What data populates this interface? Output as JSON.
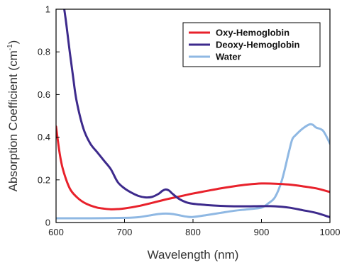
{
  "chart_data": {
    "type": "line",
    "xlabel": "Wavelength (nm)",
    "ylabel_main": "Absorption Coefficient (cm",
    "ylabel_sup": "-1",
    "ylabel_close": ")",
    "xlim": [
      600,
      1000
    ],
    "ylim": [
      0,
      1
    ],
    "x_ticks": [
      600,
      700,
      800,
      900,
      1000
    ],
    "x_tick_labels": [
      "600",
      "700",
      "800",
      "900",
      "1000"
    ],
    "y_ticks": [
      0,
      0.2,
      0.4,
      0.6,
      0.8,
      1
    ],
    "y_tick_labels": [
      "0",
      "0.2",
      "0.4",
      "0.6",
      "0.8",
      "1"
    ],
    "grid": false,
    "legend_position": "top-right",
    "series": [
      {
        "name": "Oxy-Hemoglobin",
        "color": "#e8212b",
        "x": [
          600,
          605,
          610,
          620,
          630,
          640,
          650,
          660,
          670,
          680,
          690,
          700,
          720,
          740,
          760,
          780,
          800,
          820,
          840,
          860,
          880,
          900,
          920,
          940,
          960,
          980,
          1000
        ],
        "y": [
          0.45,
          0.33,
          0.25,
          0.16,
          0.12,
          0.095,
          0.08,
          0.07,
          0.065,
          0.062,
          0.063,
          0.066,
          0.077,
          0.092,
          0.108,
          0.122,
          0.136,
          0.148,
          0.16,
          0.17,
          0.178,
          0.183,
          0.182,
          0.178,
          0.17,
          0.16,
          0.143
        ]
      },
      {
        "name": "Deoxy-Hemoglobin",
        "color": "#3d2a8c",
        "x": [
          612,
          615,
          620,
          625,
          630,
          640,
          650,
          660,
          670,
          680,
          690,
          700,
          710,
          720,
          730,
          740,
          750,
          755,
          760,
          765,
          770,
          780,
          790,
          800,
          820,
          840,
          860,
          880,
          900,
          920,
          940,
          960,
          980,
          1000
        ],
        "y": [
          1.0,
          0.93,
          0.8,
          0.68,
          0.57,
          0.44,
          0.37,
          0.33,
          0.29,
          0.25,
          0.19,
          0.16,
          0.14,
          0.125,
          0.118,
          0.12,
          0.135,
          0.148,
          0.155,
          0.15,
          0.135,
          0.11,
          0.095,
          0.088,
          0.082,
          0.078,
          0.076,
          0.076,
          0.077,
          0.076,
          0.07,
          0.058,
          0.045,
          0.025
        ]
      },
      {
        "name": "Water",
        "color": "#8fb8e3",
        "x": [
          600,
          650,
          700,
          720,
          740,
          750,
          760,
          770,
          780,
          790,
          800,
          820,
          840,
          860,
          880,
          900,
          910,
          920,
          930,
          940,
          945,
          950,
          960,
          970,
          975,
          980,
          990,
          1000
        ],
        "y": [
          0.02,
          0.02,
          0.022,
          0.025,
          0.035,
          0.04,
          0.042,
          0.04,
          0.034,
          0.028,
          0.026,
          0.035,
          0.045,
          0.055,
          0.062,
          0.07,
          0.09,
          0.12,
          0.2,
          0.33,
          0.39,
          0.41,
          0.44,
          0.46,
          0.458,
          0.445,
          0.43,
          0.37
        ]
      }
    ]
  }
}
